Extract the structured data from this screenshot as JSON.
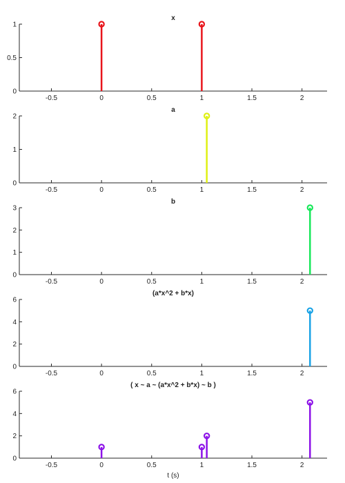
{
  "chart_data": {
    "type": "stem",
    "xlabel": "t (s)",
    "xlim": [
      -0.82,
      2.25
    ],
    "xticks": [
      -0.5,
      0,
      0.5,
      1,
      1.5,
      2
    ],
    "xtick_labels": [
      "-0.5",
      "0",
      "0.5",
      "1",
      "1.5",
      "2"
    ],
    "grid": false,
    "panels": [
      {
        "title": "x",
        "ylim": [
          0,
          1
        ],
        "yticks": [
          0,
          0.5,
          1
        ],
        "ytick_labels": [
          "0",
          "0.5",
          "1"
        ],
        "color": "#e8141b",
        "points": [
          {
            "x": 0,
            "y": 1
          },
          {
            "x": 1,
            "y": 1
          }
        ]
      },
      {
        "title": "a",
        "ylim": [
          0,
          2
        ],
        "yticks": [
          0,
          1,
          2
        ],
        "ytick_labels": [
          "0",
          "1",
          "2"
        ],
        "color": "#dff012",
        "points": [
          {
            "x": 1.05,
            "y": 2
          }
        ]
      },
      {
        "title": "b",
        "ylim": [
          0,
          3
        ],
        "yticks": [
          0,
          1,
          2,
          3
        ],
        "ytick_labels": [
          "0",
          "1",
          "2",
          "3"
        ],
        "color": "#18e85a",
        "points": [
          {
            "x": 2.08,
            "y": 3
          }
        ]
      },
      {
        "title": "(a*x^2 + b*x)",
        "ylim": [
          0,
          6
        ],
        "yticks": [
          0,
          2,
          4,
          6
        ],
        "ytick_labels": [
          "0",
          "2",
          "4",
          "6"
        ],
        "color": "#1aa3e6",
        "points": [
          {
            "x": 2.08,
            "y": 5
          }
        ]
      },
      {
        "title": "( x ~ a ~ (a*x^2 + b*x) ~ b )",
        "ylim": [
          0,
          6
        ],
        "yticks": [
          0,
          2,
          4,
          6
        ],
        "ytick_labels": [
          "0",
          "2",
          "4",
          "6"
        ],
        "color": "#8c12e8",
        "points": [
          {
            "x": 0,
            "y": 1
          },
          {
            "x": 1,
            "y": 1
          },
          {
            "x": 1.05,
            "y": 2
          },
          {
            "x": 2.08,
            "y": 5
          }
        ]
      }
    ]
  }
}
